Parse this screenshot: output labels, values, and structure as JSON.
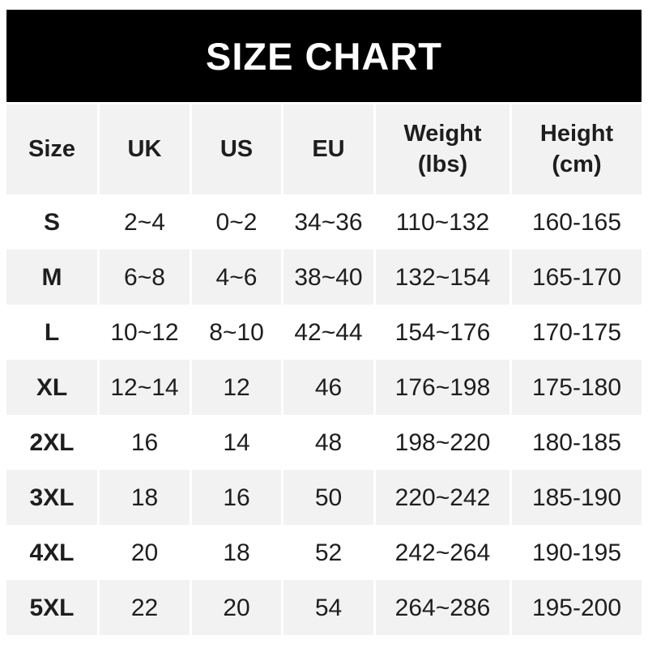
{
  "banner": {
    "title": "SIZE CHART"
  },
  "chart_data": {
    "type": "table",
    "title": "SIZE CHART",
    "columns": [
      {
        "label": "Size"
      },
      {
        "label": "UK"
      },
      {
        "label": "US"
      },
      {
        "label": "EU"
      },
      {
        "label": "Weight",
        "sub": "(lbs)"
      },
      {
        "label": "Height",
        "sub": "(cm)"
      }
    ],
    "rows": [
      [
        "S",
        "2~4",
        "0~2",
        "34~36",
        "110~132",
        "160-165"
      ],
      [
        "M",
        "6~8",
        "4~6",
        "38~40",
        "132~154",
        "165-170"
      ],
      [
        "L",
        "10~12",
        "8~10",
        "42~44",
        "154~176",
        "170-175"
      ],
      [
        "XL",
        "12~14",
        "12",
        "46",
        "176~198",
        "175-180"
      ],
      [
        "2XL",
        "16",
        "14",
        "48",
        "198~220",
        "180-185"
      ],
      [
        "3XL",
        "18",
        "16",
        "50",
        "220~242",
        "185-190"
      ],
      [
        "4XL",
        "20",
        "18",
        "52",
        "242~264",
        "190-195"
      ],
      [
        "5XL",
        "22",
        "20",
        "54",
        "264~286",
        "195-200"
      ]
    ]
  },
  "colors": {
    "page_bg": "#ffffff",
    "banner_bg": "#000000",
    "banner_text": "#ffffff",
    "row_bg": "#ffffff",
    "row_alt_bg": "#f2f2f2",
    "text": "#1e1e1e"
  }
}
